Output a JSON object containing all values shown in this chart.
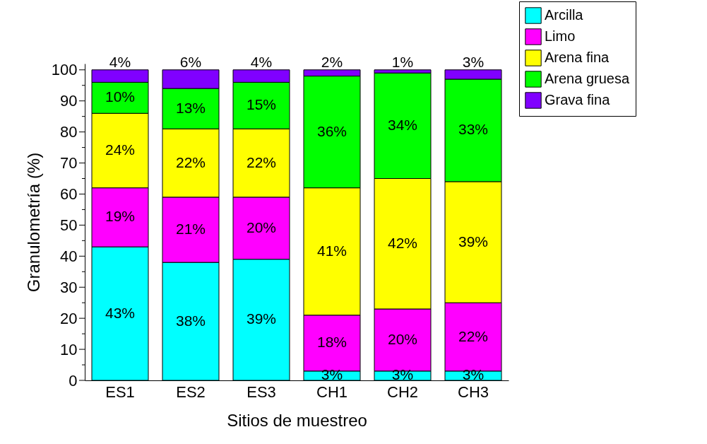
{
  "chart_data": {
    "type": "bar",
    "stacked": true,
    "xlabel": "Sitios de muestreo",
    "ylabel": "Granulometría (%)",
    "categories": [
      "ES1",
      "ES2",
      "ES3",
      "CH1",
      "CH2",
      "CH3"
    ],
    "series": [
      {
        "name": "Arcilla",
        "color": "#00ffff",
        "values": [
          43,
          38,
          39,
          3,
          3,
          3
        ],
        "value_labels": [
          "43%",
          "38%",
          "39%",
          "3%",
          "3%",
          "3%"
        ]
      },
      {
        "name": "Limo",
        "color": "#ff00ff",
        "values": [
          19,
          21,
          20,
          18,
          20,
          22
        ],
        "value_labels": [
          "19%",
          "21%",
          "20%",
          "18%",
          "20%",
          "22%"
        ]
      },
      {
        "name": "Arena fina",
        "color": "#ffff00",
        "values": [
          24,
          22,
          22,
          41,
          42,
          39
        ],
        "value_labels": [
          "24%",
          "22%",
          "22%",
          "41%",
          "42%",
          "39%"
        ]
      },
      {
        "name": "Arena gruesa",
        "color": "#00ff00",
        "values": [
          10,
          13,
          15,
          36,
          34,
          33
        ],
        "value_labels": [
          "10%",
          "13%",
          "15%",
          "36%",
          "34%",
          "33%"
        ]
      },
      {
        "name": "Grava fina",
        "color": "#8000ff",
        "values": [
          4,
          6,
          4,
          2,
          1,
          3
        ],
        "value_labels": [
          "4%",
          "6%",
          "4%",
          "2%",
          "1%",
          "3%"
        ]
      }
    ],
    "ylim": [
      0,
      102
    ],
    "yticks": [
      0,
      {
        "value": 5,
        "label": null
      },
      10,
      {
        "value": 15,
        "label": null
      },
      20,
      {
        "value": 25,
        "label": null
      },
      30,
      {
        "value": 35,
        "label": null
      },
      40,
      {
        "value": 45,
        "label": null
      },
      50,
      {
        "value": 55,
        "label": null
      },
      60,
      {
        "value": 65,
        "label": null
      },
      70,
      {
        "value": 75,
        "label": null
      },
      80,
      {
        "value": 85,
        "label": null
      },
      90,
      {
        "value": 95,
        "label": null
      },
      100
    ],
    "legend": "top right",
    "grid": false
  }
}
